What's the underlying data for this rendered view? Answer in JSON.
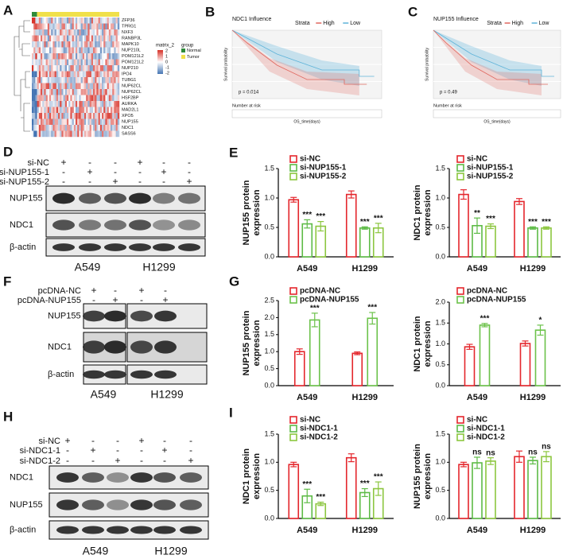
{
  "panel_labels": [
    "A",
    "B",
    "C",
    "D",
    "E",
    "F",
    "G",
    "H",
    "I"
  ],
  "heatmap": {
    "genes": [
      "ZFP36",
      "TPRG1",
      "NXF3",
      "RANBP3L",
      "MAPK10",
      "NUP210L",
      "POM121L2",
      "POM121L2",
      "NUP210",
      "IPO4",
      "TUBG1",
      "NUP62CL",
      "NUP62CL",
      "HSF2BP",
      "AURKA",
      "MAD2L1",
      "XPO5",
      "NUP155",
      "NDC1",
      "SASS6"
    ],
    "legend_title": "matrix_2",
    "legend_ticks": [
      2,
      1,
      0,
      -1,
      -2
    ],
    "group_title": "group",
    "groups": [
      "Normal",
      "Tumor"
    ]
  },
  "survival": [
    {
      "title": "NDC1 Influence",
      "strata_title": "Strata",
      "strata": [
        "High",
        "Low"
      ],
      "p_value": "p = 0.014",
      "y_label": "Survival probability",
      "x_label": "OS_time(days)",
      "risk_title": "Number at risk"
    },
    {
      "title": "NUP155 Influence",
      "strata_title": "Strata",
      "strata": [
        "High",
        "Low"
      ],
      "p_value": "p = 0.49",
      "y_label": "Survival probability",
      "x_label": "OS_time(days)",
      "risk_title": "Number at risk"
    }
  ],
  "blots": [
    {
      "conditions": [
        {
          "name": "si-NC",
          "signs": [
            "+",
            "-",
            "-",
            "+",
            "-",
            "-"
          ]
        },
        {
          "name": "si-NUP155-1",
          "signs": [
            "-",
            "+",
            "-",
            "-",
            "+",
            "-"
          ]
        },
        {
          "name": "si-NUP155-2",
          "signs": [
            "-",
            "-",
            "+",
            "-",
            "-",
            "+"
          ]
        }
      ],
      "proteins": [
        "NUP155",
        "NDC1",
        "β-actin"
      ],
      "cell_lines": [
        "A549",
        "H1299"
      ]
    },
    {
      "conditions": [
        {
          "name": "pcDNA-NC",
          "signs": [
            "+",
            "-",
            "+",
            "-"
          ]
        },
        {
          "name": "pcDNA-NUP155",
          "signs": [
            "-",
            "+",
            "-",
            "+"
          ]
        }
      ],
      "proteins": [
        "NUP155",
        "NDC1",
        "β-actin"
      ],
      "cell_lines": [
        "A549",
        "H1299"
      ]
    },
    {
      "conditions": [
        {
          "name": "si-NC",
          "signs": [
            "+",
            "-",
            "-",
            "+",
            "-",
            "-"
          ]
        },
        {
          "name": "si-NDC1-1",
          "signs": [
            "-",
            "+",
            "-",
            "-",
            "+",
            "-"
          ]
        },
        {
          "name": "si-NDC1-2",
          "signs": [
            "-",
            "-",
            "+",
            "-",
            "-",
            "+"
          ]
        }
      ],
      "proteins": [
        "NDC1",
        "NUP155",
        "β-actin"
      ],
      "cell_lines": [
        "A549",
        "H1299"
      ]
    }
  ],
  "chart_data": [
    {
      "type": "bar",
      "ylabel": [
        "NUP155 protein",
        "expression"
      ],
      "categories": [
        "A549",
        "H1299"
      ],
      "series": [
        {
          "name": "si-NC",
          "color": "#e4262c",
          "values": [
            0.97,
            1.06
          ],
          "errors": [
            0.04,
            0.06
          ]
        },
        {
          "name": "si-NUP155-1",
          "color": "#5dbb46",
          "values": [
            0.56,
            0.49
          ],
          "errors": [
            0.07,
            0.02
          ],
          "significance": [
            "***",
            "***"
          ]
        },
        {
          "name": "si-NUP155-2",
          "color": "#8cc63f",
          "values": [
            0.52,
            0.49
          ],
          "errors": [
            0.08,
            0.08
          ],
          "significance": [
            "***",
            "***"
          ]
        }
      ],
      "ylim": [
        0,
        1.5
      ],
      "yticks": [
        {
          "value": 0,
          "label": "0.0"
        },
        0.5,
        {
          "value": 1,
          "label": "1.0"
        },
        1.5
      ]
    },
    {
      "type": "bar",
      "ylabel": [
        "NDC1 protein",
        "expression"
      ],
      "categories": [
        "A549",
        "H1299"
      ],
      "series": [
        {
          "name": "si-NC",
          "color": "#e4262c",
          "values": [
            1.06,
            0.94
          ],
          "errors": [
            0.08,
            0.05
          ]
        },
        {
          "name": "si-NUP155-1",
          "color": "#5dbb46",
          "values": [
            0.53,
            0.49
          ],
          "errors": [
            0.13,
            0.02
          ],
          "significance": [
            "**",
            "***"
          ]
        },
        {
          "name": "si-NUP155-2",
          "color": "#8cc63f",
          "values": [
            0.52,
            0.49
          ],
          "errors": [
            0.04,
            0.02
          ],
          "significance": [
            "***",
            "***"
          ]
        }
      ],
      "ylim": [
        0,
        1.5
      ],
      "yticks": [
        {
          "value": 0,
          "label": "0.0"
        },
        0.5,
        {
          "value": 1,
          "label": "1.0"
        },
        1.5
      ]
    },
    {
      "type": "bar",
      "ylabel": [
        "NUP155 protein",
        "expression"
      ],
      "categories": [
        "A549",
        "H1299"
      ],
      "series": [
        {
          "name": "pcDNA-NC",
          "color": "#e4262c",
          "values": [
            1.0,
            0.95
          ],
          "errors": [
            0.08,
            0.04
          ]
        },
        {
          "name": "pcDNA-NUP155",
          "color": "#6cc24a",
          "values": [
            1.93,
            1.98
          ],
          "errors": [
            0.2,
            0.17
          ],
          "significance": [
            "***",
            "***"
          ]
        }
      ],
      "ylim": [
        0,
        2.5
      ],
      "yticks": [
        {
          "value": 0,
          "label": "0.0"
        },
        0.5,
        {
          "value": 1,
          "label": "1.0"
        },
        1.5,
        {
          "value": 2,
          "label": "2.0"
        },
        2.5
      ]
    },
    {
      "type": "bar",
      "ylabel": [
        "NDC1 protein",
        "expression"
      ],
      "categories": [
        "A549",
        "H1299"
      ],
      "series": [
        {
          "name": "pcDNA-NC",
          "color": "#e4262c",
          "values": [
            0.93,
            1.01
          ],
          "errors": [
            0.06,
            0.06
          ]
        },
        {
          "name": "pcDNA-NUP155",
          "color": "#6cc24a",
          "values": [
            1.45,
            1.33
          ],
          "errors": [
            0.04,
            0.12
          ],
          "significance": [
            "***",
            "*"
          ]
        }
      ],
      "ylim": [
        0,
        2.0
      ],
      "yticks": [
        {
          "value": 0,
          "label": "0.0"
        },
        0.5,
        {
          "value": 1,
          "label": "1.0"
        },
        1.5,
        {
          "value": 2,
          "label": "2.0"
        }
      ]
    },
    {
      "type": "bar",
      "ylabel": [
        "NDC1 protein",
        "expression"
      ],
      "categories": [
        "A549",
        "H1299"
      ],
      "series": [
        {
          "name": "si-NC",
          "color": "#e4262c",
          "values": [
            0.96,
            1.08
          ],
          "errors": [
            0.04,
            0.07
          ]
        },
        {
          "name": "si-NDC1-1",
          "color": "#5dbb46",
          "values": [
            0.4,
            0.46
          ],
          "errors": [
            0.12,
            0.07
          ],
          "significance": [
            "***",
            "***"
          ]
        },
        {
          "name": "si-NDC1-2",
          "color": "#8cc63f",
          "values": [
            0.26,
            0.53
          ],
          "errors": [
            0.03,
            0.12
          ],
          "significance": [
            "***",
            "***"
          ]
        }
      ],
      "ylim": [
        0,
        1.5
      ],
      "yticks": [
        {
          "value": 0,
          "label": "0.0"
        },
        0.5,
        {
          "value": 1,
          "label": "1.0"
        },
        1.5
      ]
    },
    {
      "type": "bar",
      "ylabel": [
        "NUP155 protein",
        "expression"
      ],
      "categories": [
        "A549",
        "H1299"
      ],
      "series": [
        {
          "name": "si-NC",
          "color": "#e4262c",
          "values": [
            0.96,
            1.1
          ],
          "errors": [
            0.04,
            0.1
          ]
        },
        {
          "name": "si-NDC1-1",
          "color": "#5dbb46",
          "values": [
            0.99,
            1.03
          ],
          "errors": [
            0.1,
            0.06
          ],
          "significance": [
            "ns",
            "ns"
          ]
        },
        {
          "name": "si-NDC1-2",
          "color": "#8cc63f",
          "values": [
            1.02,
            1.1
          ],
          "errors": [
            0.06,
            0.09
          ],
          "significance": [
            "ns",
            "ns"
          ]
        }
      ],
      "ylim": [
        0,
        1.5
      ],
      "yticks": [
        {
          "value": 0,
          "label": "0.0"
        },
        0.5,
        {
          "value": 1,
          "label": "1.0"
        },
        1.5
      ]
    }
  ]
}
